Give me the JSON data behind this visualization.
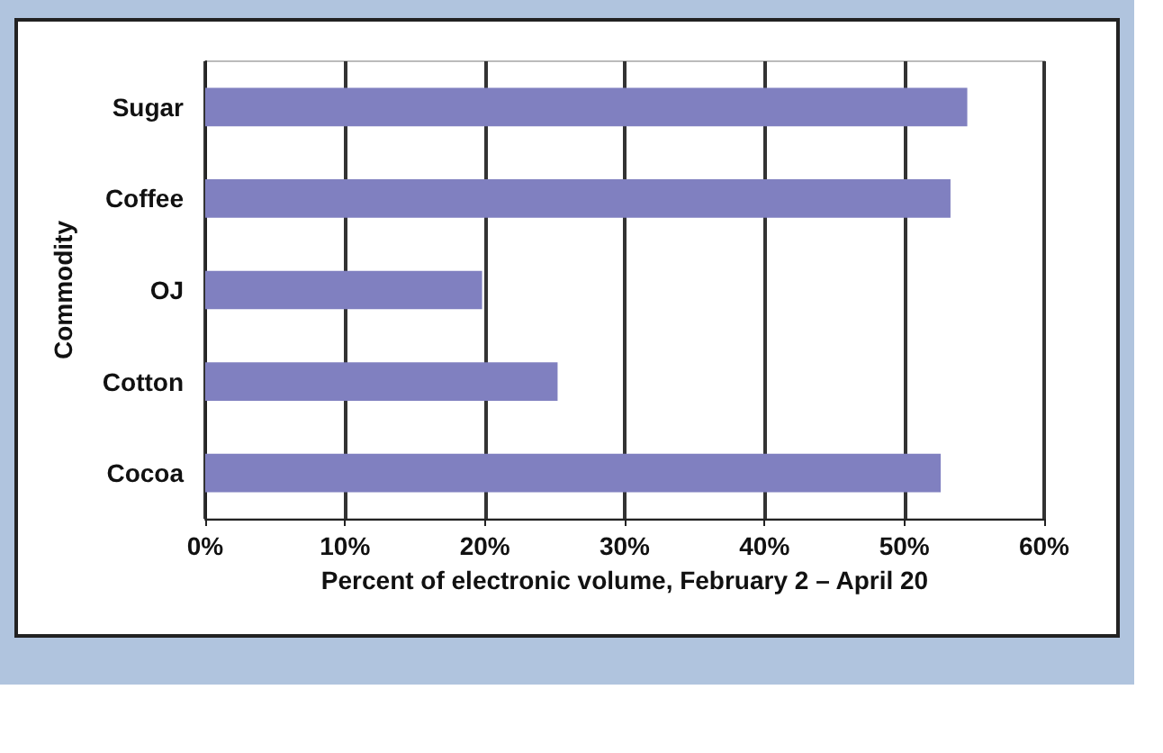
{
  "chart_data": {
    "type": "bar",
    "orientation": "horizontal",
    "xlabel": "Percent of electronic volume, February 2 – April 20",
    "ylabel": "Commodity",
    "categories": [
      "Sugar",
      "Coffee",
      "OJ",
      "Cotton",
      "Cocoa"
    ],
    "values": [
      54.5,
      53.3,
      19.8,
      25.2,
      52.6
    ],
    "color": "#8080c0",
    "xlim": [
      0,
      60
    ],
    "xticks": [
      {
        "value": 0,
        "label": "0%"
      },
      {
        "value": 10,
        "label": "10%"
      },
      {
        "value": 20,
        "label": "20%"
      },
      {
        "value": 30,
        "label": "30%"
      },
      {
        "value": 40,
        "label": "40%"
      },
      {
        "value": 50,
        "label": "50%"
      },
      {
        "value": 60,
        "label": "60%"
      }
    ],
    "grid": "x"
  }
}
